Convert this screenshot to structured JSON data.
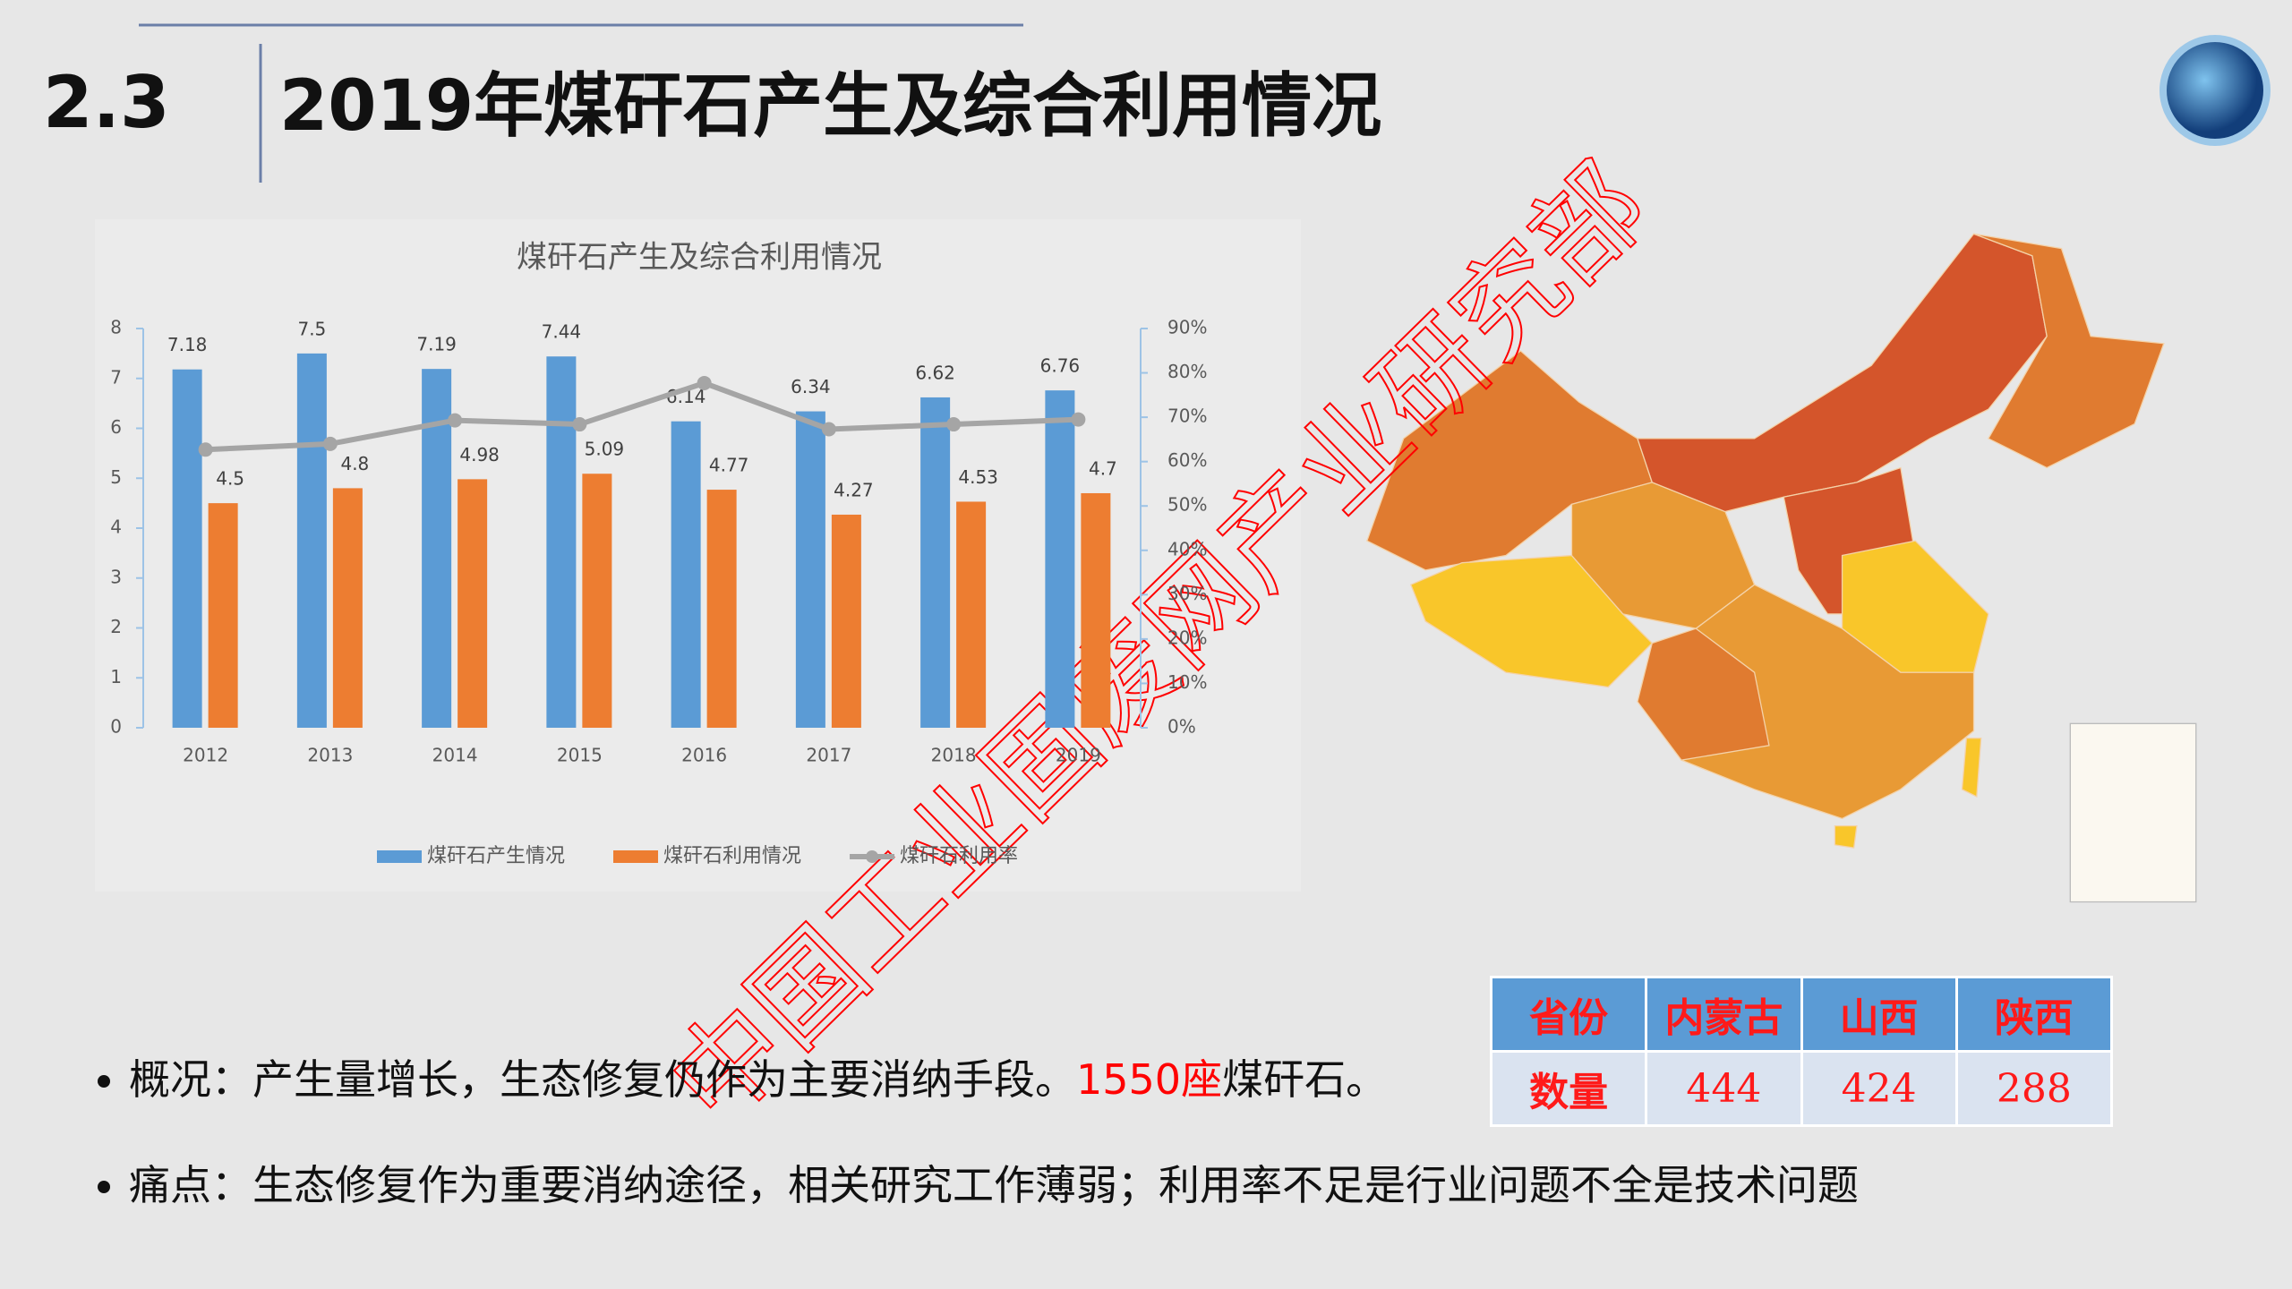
{
  "header": {
    "number": "2.3",
    "title": "2019年煤矸石产生及综合利用情况"
  },
  "chart_data": {
    "type": "bar",
    "title": "煤矸石产生及综合利用情况",
    "categories": [
      "2012",
      "2013",
      "2014",
      "2015",
      "2016",
      "2017",
      "2018",
      "2019"
    ],
    "series": [
      {
        "name": "煤矸石产生情况",
        "color": "#5b9bd5",
        "values": [
          7.18,
          7.5,
          7.19,
          7.44,
          6.14,
          6.34,
          6.62,
          6.76
        ]
      },
      {
        "name": "煤矸石利用情况",
        "color": "#ed7d31",
        "values": [
          4.5,
          4.8,
          4.98,
          5.09,
          4.77,
          4.27,
          4.53,
          4.7
        ]
      },
      {
        "name": "煤矸石利用率",
        "type": "line",
        "axis": "y2",
        "color": "#a5a5a5",
        "values": [
          62.7,
          64,
          69.3,
          68.4,
          77.7,
          67.3,
          68.4,
          69.5
        ]
      }
    ],
    "ylim": [
      0,
      8
    ],
    "yticks": [
      0,
      1,
      2,
      3,
      4,
      5,
      6,
      7,
      8
    ],
    "y2lim": [
      0,
      90
    ],
    "y2ticks": [
      {
        "value": 0,
        "label": "0%"
      },
      {
        "value": 10,
        "label": "10%"
      },
      {
        "value": 20,
        "label": "20%"
      },
      {
        "value": 30,
        "label": "30%"
      },
      {
        "value": 40,
        "label": "40%"
      },
      {
        "value": 50,
        "label": "50%"
      },
      {
        "value": 60,
        "label": "60%"
      },
      {
        "value": 70,
        "label": "70%"
      },
      {
        "value": 80,
        "label": "80%"
      },
      {
        "value": 90,
        "label": "90%"
      }
    ],
    "legend": "bottom"
  },
  "table": {
    "header": [
      "省份",
      "内蒙古",
      "山西",
      "陕西"
    ],
    "rows": [
      [
        "数量",
        444,
        424,
        288
      ]
    ]
  },
  "bullets": [
    {
      "parts": [
        {
          "text": "概况：产生量增长，生态修复仍作为主要消纳手段。"
        },
        {
          "text": "1550座",
          "color": "#ff0000"
        },
        {
          "text": "煤矸石。"
        }
      ]
    },
    {
      "parts": [
        {
          "text": "痛点：生态修复作为重要消纳途径，相关研究工作薄弱；利用率不足是行业问题不全是技术问题"
        }
      ]
    }
  ],
  "watermark": "中国工业固废网产业研究部"
}
